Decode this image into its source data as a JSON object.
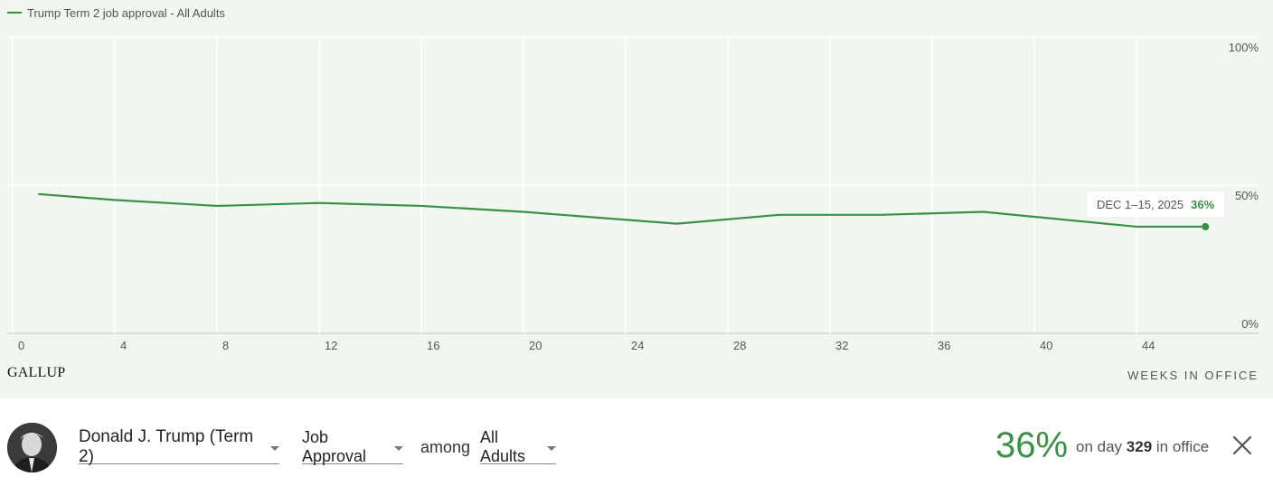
{
  "legend": {
    "label": "Trump Term 2 job approval - All Adults"
  },
  "logo_text": "GALLUP",
  "colors": {
    "line": "#3a9145",
    "background": "#f1f6f0",
    "grid": "#ffffff"
  },
  "chart_data": {
    "type": "line",
    "xlabel": "WEEKS IN OFFICE",
    "ylabel": "",
    "xlim": [
      0,
      47
    ],
    "ylim": [
      0,
      100
    ],
    "x_ticks": [
      0,
      4,
      8,
      12,
      16,
      20,
      24,
      28,
      32,
      36,
      40,
      44
    ],
    "y_ticks": [
      {
        "value": 100,
        "label": "100%"
      },
      {
        "value": 50,
        "label": "50%"
      },
      {
        "value": 0,
        "label": "0%"
      }
    ],
    "grid": true,
    "series": [
      {
        "name": "Trump Term 2 job approval - All Adults",
        "x": [
          1,
          4,
          8,
          12,
          16,
          20,
          26,
          30,
          34,
          38,
          44,
          46.7
        ],
        "y": [
          47,
          45,
          43,
          44,
          43,
          41,
          37,
          40,
          40,
          41,
          36,
          36
        ]
      }
    ],
    "tooltip": {
      "label": "DEC 1–15, 2025",
      "value": "36%"
    }
  },
  "controls": {
    "president": "Donald J. Trump (Term 2)",
    "measure": "Job Approval",
    "among": "among",
    "group": "All Adults",
    "value": "36%",
    "day_prefix": "on day",
    "day_number": "329",
    "day_suffix": "in office"
  },
  "icons": {
    "close": "close-icon",
    "avatar": "president-portrait"
  }
}
